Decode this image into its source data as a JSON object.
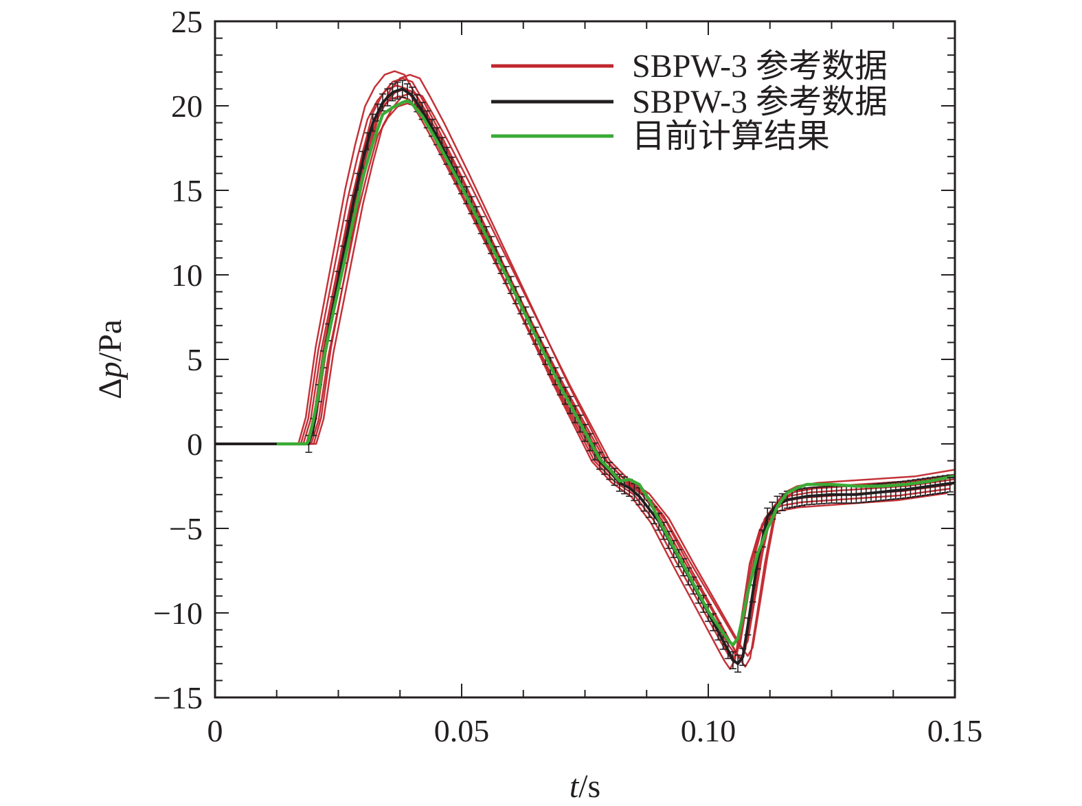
{
  "chart_data": {
    "type": "line",
    "xlabel": {
      "var": "t",
      "unit": "/s"
    },
    "ylabel": {
      "var_prefix": "Δ",
      "var": "p",
      "unit": "/Pa"
    },
    "xlim": [
      0,
      0.15
    ],
    "ylim": [
      -15,
      25
    ],
    "x_ticks": [
      0,
      0.05,
      0.1,
      0.15
    ],
    "x_tick_labels": [
      "0",
      "0.05",
      "0.10",
      "0.15"
    ],
    "y_ticks": [
      -15,
      -10,
      -5,
      0,
      5,
      10,
      15,
      20,
      25
    ],
    "y_tick_labels": [
      "−15",
      "−10",
      "−5",
      "0",
      "5",
      "10",
      "15",
      "20",
      "25"
    ],
    "grid": false,
    "legend_position": "top-right",
    "series": [
      {
        "name": "SBPW-3 参考数据",
        "color": "#c0272d",
        "style": "multiple thin lines (ensemble of reference results)",
        "x": [
          0,
          0.0185,
          0.02,
          0.022,
          0.024,
          0.026,
          0.028,
          0.03,
          0.032,
          0.034,
          0.036,
          0.038,
          0.04,
          0.042,
          0.045,
          0.05,
          0.06,
          0.07,
          0.078,
          0.08,
          0.082,
          0.084,
          0.086,
          0.09,
          0.095,
          0.1,
          0.104,
          0.105,
          0.106,
          0.107,
          0.108,
          0.11,
          0.112,
          0.114,
          0.116,
          0.12,
          0.125,
          0.13,
          0.14,
          0.15
        ],
        "y": [
          0,
          0,
          1.5,
          5.5,
          8.5,
          11.5,
          14.5,
          17.0,
          19.2,
          20.3,
          21.0,
          21.2,
          21.0,
          20.0,
          18.4,
          15.5,
          9.5,
          3.5,
          -1.0,
          -1.6,
          -2.2,
          -2.6,
          -3.0,
          -4.5,
          -7.2,
          -9.8,
          -11.9,
          -12.4,
          -12.8,
          -12.3,
          -10.5,
          -6.8,
          -4.3,
          -3.5,
          -3.2,
          -3.0,
          -2.9,
          -2.8,
          -2.6,
          -2.2
        ]
      },
      {
        "name": "SBPW-3 参考数据",
        "color": "#231f20",
        "style": "thick line with error bars",
        "x": [
          0,
          0.019,
          0.02,
          0.022,
          0.024,
          0.026,
          0.028,
          0.03,
          0.032,
          0.034,
          0.036,
          0.038,
          0.04,
          0.042,
          0.045,
          0.05,
          0.06,
          0.07,
          0.078,
          0.08,
          0.082,
          0.084,
          0.086,
          0.09,
          0.095,
          0.1,
          0.104,
          0.105,
          0.106,
          0.107,
          0.108,
          0.11,
          0.112,
          0.114,
          0.116,
          0.12,
          0.125,
          0.13,
          0.14,
          0.15
        ],
        "y": [
          0,
          0,
          1.0,
          5.0,
          8.2,
          11.2,
          14.2,
          16.8,
          19.0,
          20.2,
          20.8,
          21.0,
          20.6,
          19.7,
          18.2,
          15.3,
          9.4,
          3.4,
          -1.0,
          -1.6,
          -2.3,
          -2.6,
          -3.1,
          -4.6,
          -7.3,
          -10.0,
          -12.2,
          -12.8,
          -13.0,
          -12.6,
          -10.8,
          -6.9,
          -4.3,
          -3.6,
          -3.3,
          -3.1,
          -3.0,
          -3.0,
          -2.7,
          -2.3
        ],
        "error_bar_halfwidth": 0.5
      },
      {
        "name": "目前计算结果",
        "color": "#3aaa35",
        "style": "thick solid line",
        "x": [
          0.0125,
          0.0185,
          0.019,
          0.02,
          0.021,
          0.022,
          0.024,
          0.026,
          0.028,
          0.03,
          0.032,
          0.034,
          0.036,
          0.038,
          0.039,
          0.04,
          0.042,
          0.045,
          0.05,
          0.06,
          0.07,
          0.078,
          0.08,
          0.082,
          0.084,
          0.086,
          0.088,
          0.09,
          0.095,
          0.1,
          0.104,
          0.105,
          0.106,
          0.107,
          0.108,
          0.11,
          0.112,
          0.113,
          0.114,
          0.116,
          0.118,
          0.12,
          0.125,
          0.13,
          0.135,
          0.14,
          0.145,
          0.15
        ],
        "y": [
          0,
          0,
          0.2,
          1.5,
          3.0,
          5.0,
          7.8,
          10.5,
          13.2,
          15.8,
          17.8,
          19.5,
          19.9,
          20.2,
          20.3,
          20.1,
          19.4,
          17.9,
          15.2,
          9.4,
          3.4,
          -0.9,
          -1.5,
          -2.2,
          -2.1,
          -2.4,
          -3.3,
          -4.5,
          -7.2,
          -9.9,
          -11.6,
          -11.9,
          -11.5,
          -10.2,
          -8.8,
          -6.5,
          -5.0,
          -4.4,
          -3.7,
          -2.9,
          -2.6,
          -2.4,
          -2.4,
          -2.5,
          -2.5,
          -2.4,
          -2.2,
          -1.9
        ]
      }
    ]
  }
}
